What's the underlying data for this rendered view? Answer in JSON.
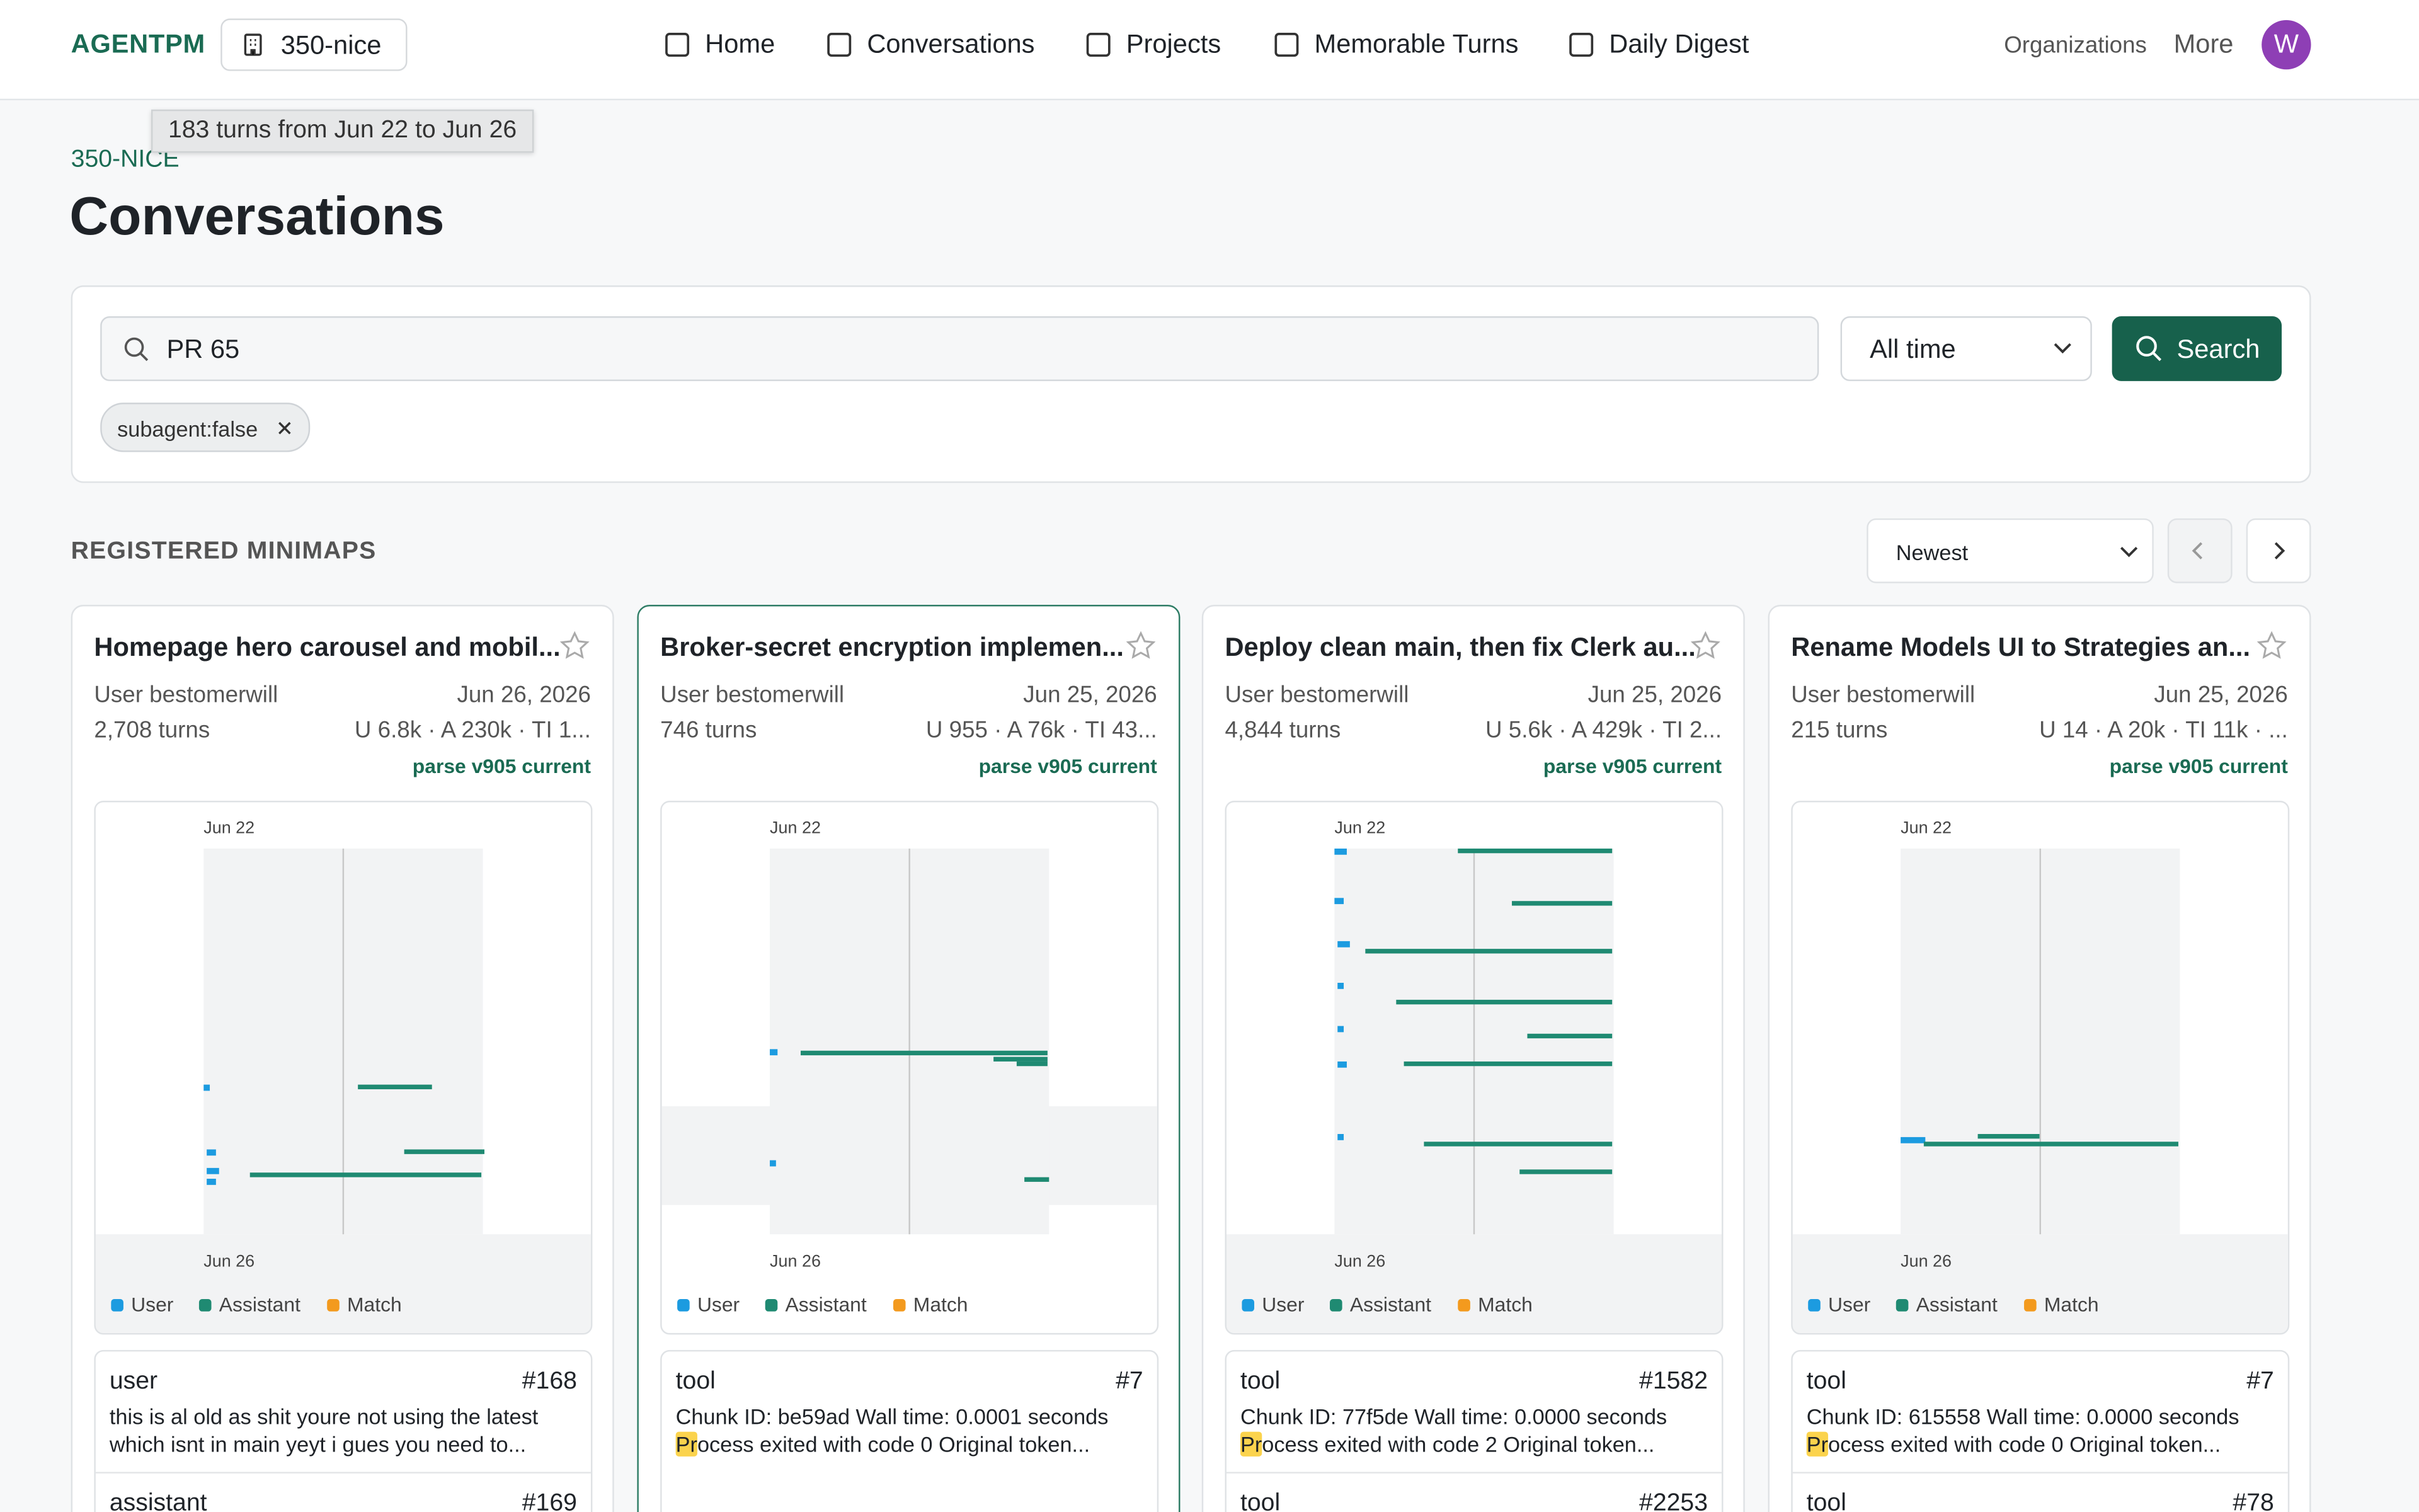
{
  "nav": {
    "brand": "AGENTPM",
    "org": "350-nice",
    "links": [
      "Home",
      "Conversations",
      "Projects",
      "Memorable Turns",
      "Daily Digest"
    ],
    "right": [
      "Organizations",
      "More"
    ],
    "avatar": "W"
  },
  "tooltip": "183 turns from Jun 22 to Jun 26",
  "header": {
    "eyebrow": "350-NICE",
    "title": "Conversations"
  },
  "search": {
    "query": "PR 65",
    "range": "All time",
    "button": "Search",
    "chips": [
      "subagent:false"
    ]
  },
  "section": {
    "title": "REGISTERED MINIMAPS",
    "sort": "Newest"
  },
  "legend": [
    "User",
    "Assistant",
    "Match"
  ],
  "cards": [
    {
      "title": "Homepage hero carousel and mobil...",
      "user": "User bestomerwill",
      "date": "Jun 26, 2026",
      "turns": "2,708 turns",
      "stats": "U 6.8k · A 230k · TI 1...",
      "parse": "parse v905 current",
      "start": "Jun 22",
      "end": "Jun 26",
      "snippets": [
        {
          "role": "user",
          "num": "#168",
          "text": "this is al old as shit youre not using the latest which isnt in main yeyt i gues you need to..."
        },
        {
          "role": "assistant",
          "num": "#169"
        }
      ]
    },
    {
      "title": "Broker-secret encryption implemen...",
      "user": "User bestomerwill",
      "date": "Jun 25, 2026",
      "turns": "746 turns",
      "stats": "U 955 · A 76k · TI 43...",
      "parse": "parse v905 current",
      "start": "Jun 22",
      "end": "Jun 26",
      "snippets": [
        {
          "role": "tool",
          "num": "#7",
          "text": "Chunk ID: be59ad Wall time: 0.0001 seconds ",
          "match": "Pr",
          "rest": "ocess exited with code 0 Original token..."
        }
      ]
    },
    {
      "title": "Deploy clean main, then fix Clerk au...",
      "user": "User bestomerwill",
      "date": "Jun 25, 2026",
      "turns": "4,844 turns",
      "stats": "U 5.6k · A 429k · TI 2...",
      "parse": "parse v905 current",
      "start": "Jun 22",
      "end": "Jun 26",
      "snippets": [
        {
          "role": "tool",
          "num": "#1582",
          "text": "Chunk ID: 77f5de Wall time: 0.0000 seconds ",
          "match": "Pr",
          "rest": "ocess exited with code 2 Original token..."
        },
        {
          "role": "tool",
          "num": "#2253"
        }
      ]
    },
    {
      "title": "Rename Models UI to Strategies an...",
      "user": "User bestomerwill",
      "date": "Jun 25, 2026",
      "turns": "215 turns",
      "stats": "U 14 · A 20k · TI 11k · ...",
      "parse": "parse v905 current",
      "start": "Jun 22",
      "end": "Jun 26",
      "snippets": [
        {
          "role": "tool",
          "num": "#7",
          "text": "Chunk ID: 615558 Wall time: 0.0000 seconds ",
          "match": "Pr",
          "rest": "ocess exited with code 0 Original token..."
        },
        {
          "role": "tool",
          "num": "#78"
        }
      ]
    }
  ]
}
